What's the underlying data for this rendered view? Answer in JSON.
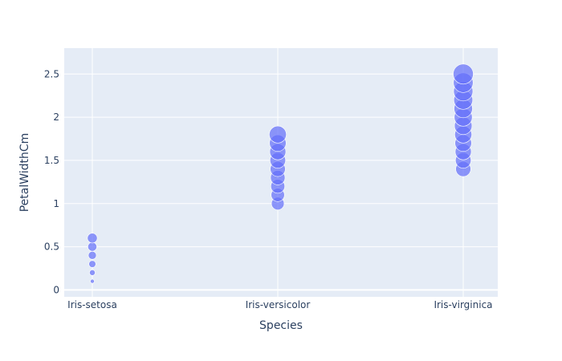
{
  "chart_data": {
    "type": "scatter",
    "title": "",
    "xlabel": "Species",
    "ylabel": "PetalWidthCm",
    "categories": [
      "Iris-setosa",
      "Iris-versicolor",
      "Iris-virginica"
    ],
    "ylim": [
      -0.08,
      2.8
    ],
    "yticks": [
      0,
      0.5,
      1,
      1.5,
      2,
      2.5
    ],
    "ytick_labels": [
      "0",
      "0.5",
      "1",
      "1.5",
      "2",
      "2.5"
    ],
    "grid": true,
    "marker_size_encodes": "PetalWidthCm",
    "colors": {
      "plot_background": "#e5ecf6",
      "grid": "#ffffff",
      "marker": "#636efa",
      "text": "#2a3f5f"
    },
    "points": [
      {
        "x": "Iris-setosa",
        "y": 0.1
      },
      {
        "x": "Iris-setosa",
        "y": 0.2
      },
      {
        "x": "Iris-setosa",
        "y": 0.3
      },
      {
        "x": "Iris-setosa",
        "y": 0.4
      },
      {
        "x": "Iris-setosa",
        "y": 0.5
      },
      {
        "x": "Iris-setosa",
        "y": 0.6
      },
      {
        "x": "Iris-versicolor",
        "y": 1.0
      },
      {
        "x": "Iris-versicolor",
        "y": 1.1
      },
      {
        "x": "Iris-versicolor",
        "y": 1.2
      },
      {
        "x": "Iris-versicolor",
        "y": 1.3
      },
      {
        "x": "Iris-versicolor",
        "y": 1.4
      },
      {
        "x": "Iris-versicolor",
        "y": 1.5
      },
      {
        "x": "Iris-versicolor",
        "y": 1.6
      },
      {
        "x": "Iris-versicolor",
        "y": 1.7
      },
      {
        "x": "Iris-versicolor",
        "y": 1.8
      },
      {
        "x": "Iris-virginica",
        "y": 1.4
      },
      {
        "x": "Iris-virginica",
        "y": 1.5
      },
      {
        "x": "Iris-virginica",
        "y": 1.6
      },
      {
        "x": "Iris-virginica",
        "y": 1.7
      },
      {
        "x": "Iris-virginica",
        "y": 1.8
      },
      {
        "x": "Iris-virginica",
        "y": 1.9
      },
      {
        "x": "Iris-virginica",
        "y": 2.0
      },
      {
        "x": "Iris-virginica",
        "y": 2.1
      },
      {
        "x": "Iris-virginica",
        "y": 2.2
      },
      {
        "x": "Iris-virginica",
        "y": 2.3
      },
      {
        "x": "Iris-virginica",
        "y": 2.4
      },
      {
        "x": "Iris-virginica",
        "y": 2.5
      }
    ]
  }
}
